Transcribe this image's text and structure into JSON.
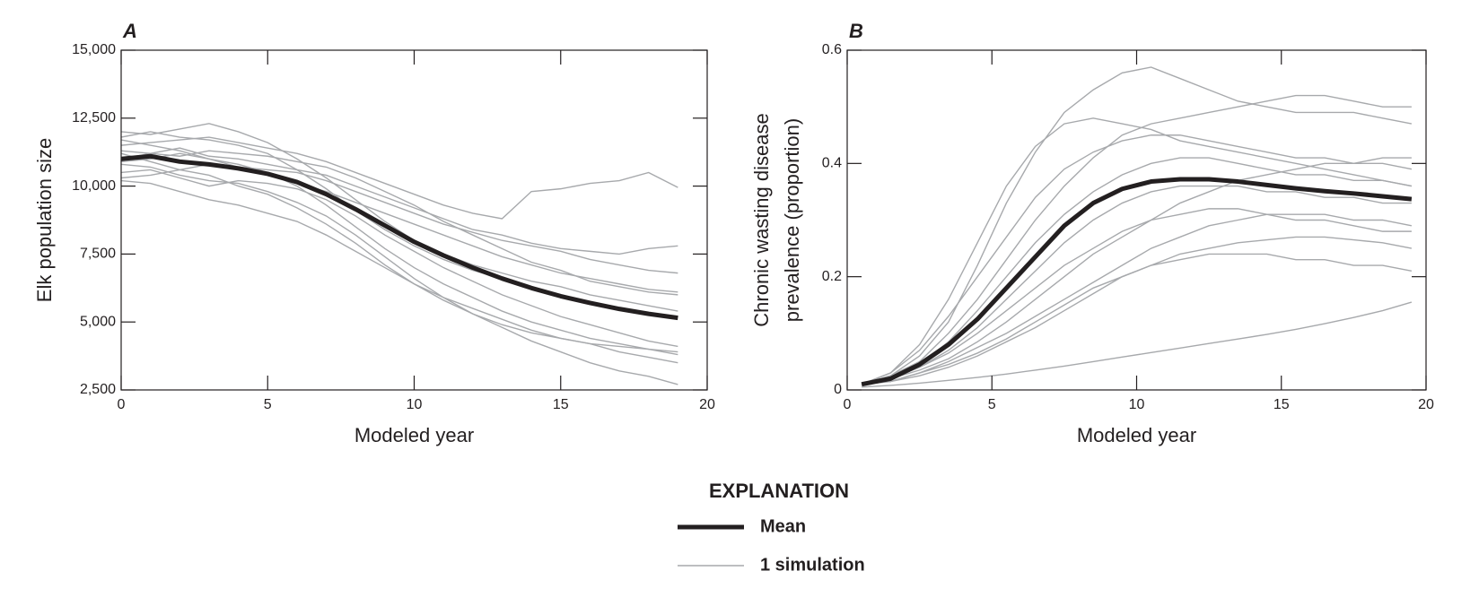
{
  "chart_data": [
    {
      "type": "line",
      "panel_label": "A",
      "xlabel": "Modeled year",
      "ylabel": [
        "Elk population size"
      ],
      "x": [
        0,
        1,
        2,
        3,
        4,
        5,
        6,
        7,
        8,
        9,
        10,
        11,
        12,
        13,
        14,
        15,
        16,
        17,
        18,
        19
      ],
      "xlim": [
        0,
        20
      ],
      "xticks": [
        0,
        5,
        10,
        15,
        20
      ],
      "ylim": [
        2500,
        15000
      ],
      "yticks": [
        {
          "value": 2500,
          "label": "2,500"
        },
        {
          "value": 5000,
          "label": "5,000"
        },
        {
          "value": 7500,
          "label": "7,500"
        },
        {
          "value": 10000,
          "label": "10,000"
        },
        {
          "value": 12500,
          "label": "12,500"
        },
        {
          "value": 15000,
          "label": "15,000"
        }
      ],
      "grid": false,
      "simulations": {
        "name": "1 simulation",
        "color": "#a7a9ac",
        "runs": [
          [
            11500,
            11600,
            11700,
            11800,
            11600,
            11400,
            11200,
            10900,
            10500,
            10100,
            9700,
            9300,
            9000,
            8800,
            9800,
            9900,
            10100,
            10200,
            10500,
            9950
          ],
          [
            12000,
            11900,
            12100,
            12300,
            12000,
            11600,
            11000,
            10300,
            9500,
            8700,
            8000,
            7500,
            7100,
            6800,
            6500,
            6300,
            6000,
            5800,
            5600,
            5400
          ],
          [
            10200,
            10100,
            9800,
            9500,
            9300,
            9000,
            8700,
            8200,
            7600,
            7000,
            6400,
            5900,
            5500,
            5100,
            4700,
            4400,
            4200,
            3900,
            3700,
            3500
          ],
          [
            11300,
            11200,
            11400,
            11100,
            11000,
            10800,
            10600,
            10400,
            10000,
            9600,
            9200,
            8800,
            8400,
            8200,
            7900,
            7700,
            7600,
            7500,
            7700,
            7800
          ],
          [
            10800,
            10700,
            10400,
            10200,
            10100,
            9800,
            9400,
            8900,
            8200,
            7400,
            6600,
            5900,
            5300,
            4800,
            4300,
            3900,
            3500,
            3200,
            3000,
            2700
          ],
          [
            11000,
            11200,
            11100,
            11300,
            11200,
            11100,
            10900,
            10700,
            10300,
            9800,
            9300,
            8700,
            8200,
            7700,
            7200,
            6900,
            6500,
            6300,
            6100,
            6000
          ],
          [
            10500,
            10600,
            10300,
            10000,
            10200,
            10100,
            9900,
            9500,
            8900,
            8200,
            7600,
            7000,
            6500,
            6000,
            5600,
            5200,
            4900,
            4600,
            4300,
            4100
          ],
          [
            11700,
            11500,
            11300,
            11000,
            10800,
            10500,
            10000,
            9300,
            8500,
            7700,
            7000,
            6400,
            5900,
            5400,
            5000,
            4700,
            4400,
            4200,
            4000,
            3800
          ],
          [
            10900,
            11000,
            11200,
            11000,
            10700,
            10400,
            10100,
            9800,
            9400,
            9000,
            8600,
            8200,
            7800,
            7400,
            7100,
            6800,
            6600,
            6400,
            6200,
            6100
          ],
          [
            11200,
            10900,
            10600,
            10400,
            10000,
            9700,
            9200,
            8600,
            7900,
            7100,
            6400,
            5800,
            5300,
            4900,
            4600,
            4400,
            4200,
            4100,
            4000,
            3900
          ],
          [
            10300,
            10400,
            10600,
            10800,
            10700,
            10600,
            10500,
            10200,
            9800,
            9400,
            9000,
            8600,
            8300,
            8000,
            7800,
            7600,
            7300,
            7100,
            6900,
            6800
          ],
          [
            11800,
            12000,
            11800,
            11700,
            11500,
            11200,
            10600,
            9900,
            9100,
            8400,
            7800,
            7300,
            6900,
            6600,
            6300,
            6000,
            5700,
            5500,
            5300,
            5200
          ]
        ]
      },
      "series": [
        {
          "name": "Mean",
          "color": "#231f20",
          "values": [
            11000,
            11100,
            10900,
            10800,
            10650,
            10450,
            10150,
            9700,
            9150,
            8550,
            7950,
            7450,
            7000,
            6600,
            6250,
            5950,
            5700,
            5480,
            5300,
            5150
          ]
        }
      ]
    },
    {
      "type": "line",
      "panel_label": "B",
      "xlabel": "Modeled year",
      "ylabel": [
        "Chronic wasting disease",
        "prevalence (proportion)"
      ],
      "x": [
        0.5,
        1.5,
        2.5,
        3.5,
        4.5,
        5.5,
        6.5,
        7.5,
        8.5,
        9.5,
        10.5,
        11.5,
        12.5,
        13.5,
        14.5,
        15.5,
        16.5,
        17.5,
        18.5,
        19.5
      ],
      "xlim": [
        0,
        20
      ],
      "xticks": [
        0,
        5,
        10,
        15,
        20
      ],
      "ylim": [
        0,
        0.6
      ],
      "yticks": [
        0,
        0.2,
        0.4,
        0.6
      ],
      "grid": false,
      "simulations": {
        "color": "#a7a9ac",
        "runs": [
          [
            0.005,
            0.008,
            0.012,
            0.017,
            0.022,
            0.028,
            0.035,
            0.042,
            0.05,
            0.058,
            0.066,
            0.074,
            0.082,
            0.09,
            0.098,
            0.107,
            0.117,
            0.128,
            0.14,
            0.155
          ],
          [
            0.01,
            0.025,
            0.06,
            0.12,
            0.22,
            0.33,
            0.42,
            0.49,
            0.53,
            0.56,
            0.57,
            0.55,
            0.53,
            0.51,
            0.5,
            0.49,
            0.49,
            0.49,
            0.48,
            0.47
          ],
          [
            0.01,
            0.02,
            0.04,
            0.07,
            0.11,
            0.16,
            0.21,
            0.26,
            0.3,
            0.33,
            0.35,
            0.36,
            0.36,
            0.36,
            0.35,
            0.35,
            0.34,
            0.34,
            0.33,
            0.33
          ],
          [
            0.01,
            0.015,
            0.025,
            0.04,
            0.06,
            0.085,
            0.11,
            0.14,
            0.17,
            0.2,
            0.22,
            0.24,
            0.25,
            0.26,
            0.265,
            0.27,
            0.27,
            0.265,
            0.26,
            0.25
          ],
          [
            0.01,
            0.03,
            0.07,
            0.13,
            0.2,
            0.27,
            0.34,
            0.39,
            0.42,
            0.44,
            0.45,
            0.45,
            0.44,
            0.43,
            0.42,
            0.41,
            0.41,
            0.4,
            0.4,
            0.39
          ],
          [
            0.01,
            0.02,
            0.035,
            0.055,
            0.085,
            0.12,
            0.16,
            0.2,
            0.24,
            0.27,
            0.3,
            0.31,
            0.32,
            0.32,
            0.31,
            0.3,
            0.3,
            0.29,
            0.28,
            0.28
          ],
          [
            0.01,
            0.025,
            0.05,
            0.1,
            0.16,
            0.23,
            0.3,
            0.36,
            0.41,
            0.45,
            0.47,
            0.48,
            0.49,
            0.5,
            0.51,
            0.52,
            0.52,
            0.51,
            0.5,
            0.5
          ],
          [
            0.01,
            0.015,
            0.03,
            0.05,
            0.075,
            0.1,
            0.13,
            0.16,
            0.19,
            0.22,
            0.25,
            0.27,
            0.29,
            0.3,
            0.31,
            0.31,
            0.31,
            0.3,
            0.3,
            0.29
          ],
          [
            0.01,
            0.02,
            0.045,
            0.085,
            0.14,
            0.2,
            0.26,
            0.31,
            0.35,
            0.38,
            0.4,
            0.41,
            0.41,
            0.4,
            0.39,
            0.38,
            0.38,
            0.37,
            0.37,
            0.36
          ],
          [
            0.01,
            0.02,
            0.04,
            0.065,
            0.1,
            0.14,
            0.18,
            0.22,
            0.25,
            0.28,
            0.3,
            0.33,
            0.35,
            0.37,
            0.38,
            0.39,
            0.4,
            0.4,
            0.41,
            0.41
          ],
          [
            0.01,
            0.015,
            0.03,
            0.045,
            0.065,
            0.09,
            0.12,
            0.15,
            0.18,
            0.2,
            0.22,
            0.23,
            0.24,
            0.24,
            0.24,
            0.23,
            0.23,
            0.22,
            0.22,
            0.21
          ],
          [
            0.01,
            0.03,
            0.08,
            0.16,
            0.26,
            0.36,
            0.43,
            0.47,
            0.48,
            0.47,
            0.46,
            0.44,
            0.43,
            0.42,
            0.41,
            0.4,
            0.39,
            0.38,
            0.37,
            0.36
          ]
        ]
      },
      "series": [
        {
          "color": "#231f20",
          "values": [
            0.01,
            0.02,
            0.045,
            0.08,
            0.125,
            0.18,
            0.235,
            0.29,
            0.33,
            0.355,
            0.368,
            0.372,
            0.372,
            0.368,
            0.362,
            0.356,
            0.351,
            0.347,
            0.342,
            0.337
          ]
        }
      ]
    }
  ],
  "legend": {
    "title": "EXPLANATION"
  }
}
